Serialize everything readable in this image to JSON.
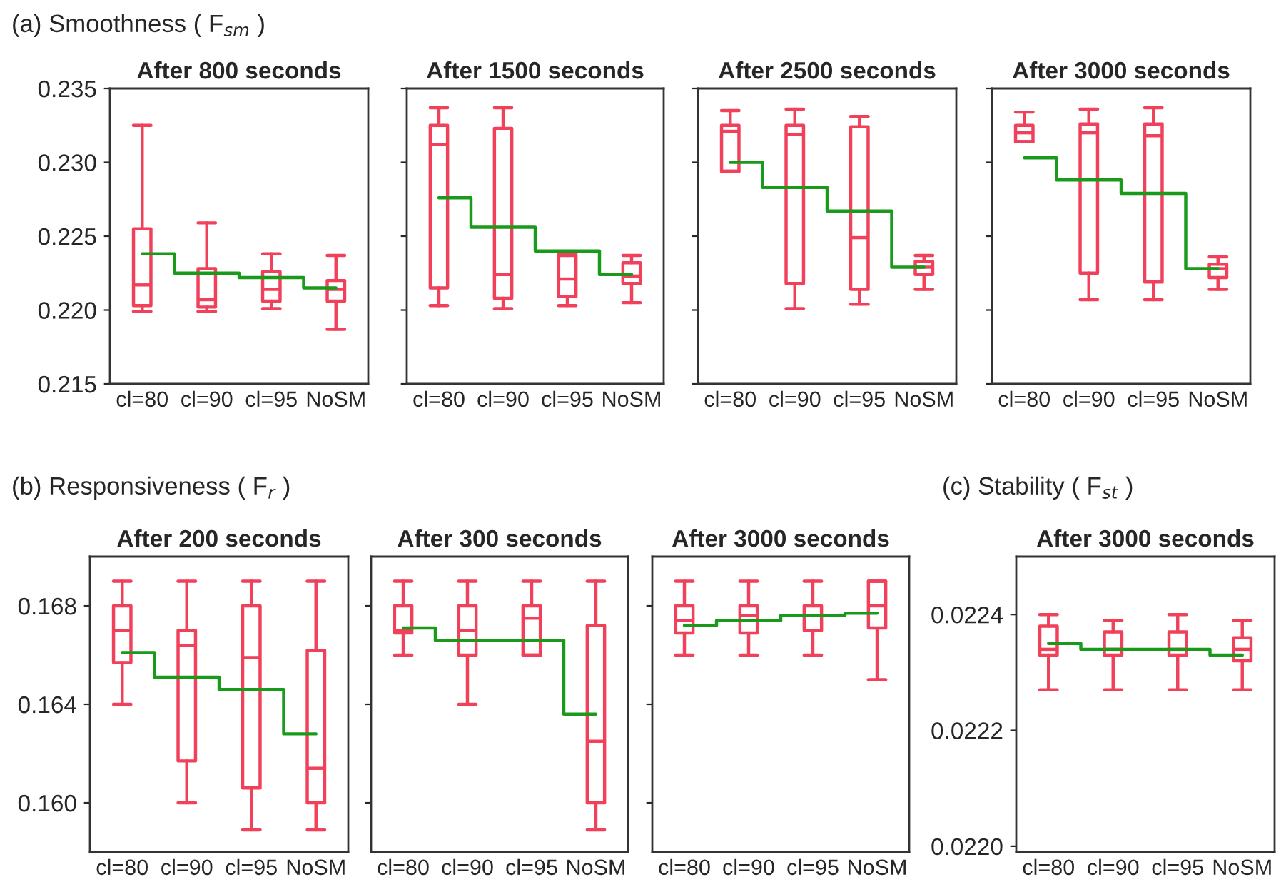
{
  "chart_data": [
    {
      "type": "box",
      "title": "After 800 seconds",
      "annotations": [
        "(a) Smoothness ( F$_{sm}$ )"
      ],
      "categories": [
        "cl=80",
        "cl=90",
        "cl=95",
        "NoSM"
      ],
      "ylim": [
        0.215,
        0.235
      ],
      "yticks": [
        {
          "value": 0.215,
          "label": "0.215"
        },
        {
          "value": 0.22,
          "label": "0.220"
        },
        {
          "value": 0.225,
          "label": "0.225"
        },
        {
          "value": 0.23,
          "label": "0.230"
        },
        {
          "value": 0.235,
          "label": "0.235"
        }
      ],
      "grid": false,
      "series": [
        {
          "color": "#f0405a",
          "boxes": [
            {
              "low": 0.2199,
              "q1": 0.2203,
              "median": 0.2217,
              "q3": 0.2255,
              "high": 0.2325
            },
            {
              "low": 0.2199,
              "q1": 0.2202,
              "median": 0.2207,
              "q3": 0.2228,
              "high": 0.2259
            },
            {
              "low": 0.2201,
              "q1": 0.2206,
              "median": 0.2214,
              "q3": 0.2226,
              "high": 0.2238
            },
            {
              "low": 0.2187,
              "q1": 0.2206,
              "median": 0.2214,
              "q3": 0.222,
              "high": 0.2237
            }
          ]
        },
        {
          "type": "step",
          "color": "#1a9a1a",
          "values": [
            0.2238,
            0.2225,
            0.2222,
            0.2215
          ]
        }
      ]
    },
    {
      "type": "box",
      "title": "After 1500 seconds",
      "categories": [
        "cl=80",
        "cl=90",
        "cl=95",
        "NoSM"
      ],
      "ylim": [
        0.215,
        0.235
      ],
      "yticks": [
        {
          "value": 0.215,
          "label": null
        },
        {
          "value": 0.22,
          "label": null
        },
        {
          "value": 0.225,
          "label": null
        },
        {
          "value": 0.23,
          "label": null
        },
        {
          "value": 0.235,
          "label": null
        }
      ],
      "tick_labels": "x",
      "grid": false,
      "series": [
        {
          "color": "#f0405a",
          "boxes": [
            {
              "low": 0.2203,
              "q1": 0.2215,
              "median": 0.2312,
              "q3": 0.2325,
              "high": 0.2337
            },
            {
              "low": 0.2201,
              "q1": 0.2208,
              "median": 0.2224,
              "q3": 0.2323,
              "high": 0.2337
            },
            {
              "low": 0.2203,
              "q1": 0.2209,
              "median": 0.2221,
              "q3": 0.2237,
              "high": 0.2238
            },
            {
              "low": 0.2205,
              "q1": 0.2218,
              "median": 0.2223,
              "q3": 0.2232,
              "high": 0.2237
            }
          ]
        },
        {
          "type": "step",
          "color": "#1a9a1a",
          "values": [
            0.2276,
            0.2256,
            0.224,
            0.2224
          ]
        }
      ]
    },
    {
      "type": "box",
      "title": "After 2500 seconds",
      "categories": [
        "cl=80",
        "cl=90",
        "cl=95",
        "NoSM"
      ],
      "ylim": [
        0.215,
        0.235
      ],
      "yticks": [
        {
          "value": 0.215,
          "label": null
        },
        {
          "value": 0.22,
          "label": null
        },
        {
          "value": 0.225,
          "label": null
        },
        {
          "value": 0.23,
          "label": null
        },
        {
          "value": 0.235,
          "label": null
        }
      ],
      "tick_labels": "x",
      "grid": false,
      "series": [
        {
          "color": "#f0405a",
          "boxes": [
            {
              "low": 0.2294,
              "q1": 0.2294,
              "median": 0.2321,
              "q3": 0.2325,
              "high": 0.2335
            },
            {
              "low": 0.2201,
              "q1": 0.2218,
              "median": 0.2319,
              "q3": 0.2325,
              "high": 0.2336
            },
            {
              "low": 0.2204,
              "q1": 0.2214,
              "median": 0.2249,
              "q3": 0.2324,
              "high": 0.2331
            },
            {
              "low": 0.2214,
              "q1": 0.2224,
              "median": 0.2229,
              "q3": 0.2233,
              "high": 0.2237
            }
          ]
        },
        {
          "type": "step",
          "color": "#1a9a1a",
          "values": [
            0.23,
            0.2283,
            0.2267,
            0.2229
          ]
        }
      ]
    },
    {
      "type": "box",
      "title": "After 3000 seconds",
      "categories": [
        "cl=80",
        "cl=90",
        "cl=95",
        "NoSM"
      ],
      "ylim": [
        0.215,
        0.235
      ],
      "yticks": [
        {
          "value": 0.215,
          "label": null
        },
        {
          "value": 0.22,
          "label": null
        },
        {
          "value": 0.225,
          "label": null
        },
        {
          "value": 0.23,
          "label": null
        },
        {
          "value": 0.235,
          "label": null
        }
      ],
      "tick_labels": "x",
      "grid": false,
      "series": [
        {
          "color": "#f0405a",
          "boxes": [
            {
              "low": 0.2314,
              "q1": 0.2314,
              "median": 0.232,
              "q3": 0.2325,
              "high": 0.2334
            },
            {
              "low": 0.2207,
              "q1": 0.2225,
              "median": 0.232,
              "q3": 0.2326,
              "high": 0.2336
            },
            {
              "low": 0.2207,
              "q1": 0.2219,
              "median": 0.2318,
              "q3": 0.2326,
              "high": 0.2337
            },
            {
              "low": 0.2214,
              "q1": 0.2222,
              "median": 0.2228,
              "q3": 0.2231,
              "high": 0.2236
            }
          ]
        },
        {
          "type": "step",
          "color": "#1a9a1a",
          "values": [
            0.2303,
            0.2288,
            0.2279,
            0.2228
          ]
        }
      ]
    },
    {
      "type": "box",
      "title": "After 200 seconds",
      "annotations": [
        "(b) Responsiveness ( F$_{r}$ )"
      ],
      "categories": [
        "cl=80",
        "cl=90",
        "cl=95",
        "NoSM"
      ],
      "ylim": [
        0.158,
        0.17
      ],
      "yticks": [
        {
          "value": 0.16,
          "label": "0.160"
        },
        0.164,
        0.168
      ],
      "grid": false,
      "series": [
        {
          "color": "#f0405a",
          "boxes": [
            {
              "low": 0.164,
              "q1": 0.1657,
              "median": 0.167,
              "q3": 0.168,
              "high": 0.169
            },
            {
              "low": 0.16,
              "q1": 0.1617,
              "median": 0.1664,
              "q3": 0.167,
              "high": 0.169
            },
            {
              "low": 0.1589,
              "q1": 0.1606,
              "median": 0.1659,
              "q3": 0.168,
              "high": 0.169
            },
            {
              "low": 0.1589,
              "q1": 0.16,
              "median": 0.1614,
              "q3": 0.1662,
              "high": 0.169
            }
          ]
        },
        {
          "type": "step",
          "color": "#1a9a1a",
          "values": [
            0.1661,
            0.1651,
            0.1646,
            0.1628
          ]
        }
      ]
    },
    {
      "type": "box",
      "title": "After 300 seconds",
      "categories": [
        "cl=80",
        "cl=90",
        "cl=95",
        "NoSM"
      ],
      "ylim": [
        0.158,
        0.17
      ],
      "yticks": [
        {
          "value": 0.16,
          "label": null
        },
        {
          "value": 0.164,
          "label": null
        },
        {
          "value": 0.168,
          "label": null
        }
      ],
      "tick_labels": "x",
      "grid": false,
      "series": [
        {
          "color": "#f0405a",
          "boxes": [
            {
              "low": 0.166,
              "q1": 0.1669,
              "median": 0.167,
              "q3": 0.168,
              "high": 0.169
            },
            {
              "low": 0.164,
              "q1": 0.166,
              "median": 0.167,
              "q3": 0.168,
              "high": 0.169
            },
            {
              "low": 0.166,
              "q1": 0.166,
              "median": 0.1675,
              "q3": 0.168,
              "high": 0.169
            },
            {
              "low": 0.1589,
              "q1": 0.16,
              "median": 0.1625,
              "q3": 0.1672,
              "high": 0.169
            }
          ]
        },
        {
          "type": "step",
          "color": "#1a9a1a",
          "values": [
            0.1671,
            0.1666,
            0.1666,
            0.1636
          ]
        }
      ]
    },
    {
      "type": "box",
      "title": "After 3000 seconds",
      "categories": [
        "cl=80",
        "cl=90",
        "cl=95",
        "NoSM"
      ],
      "ylim": [
        0.158,
        0.17
      ],
      "yticks": [
        {
          "value": 0.16,
          "label": null
        },
        {
          "value": 0.164,
          "label": null
        },
        {
          "value": 0.168,
          "label": null
        }
      ],
      "tick_labels": "x",
      "grid": false,
      "series": [
        {
          "color": "#f0405a",
          "boxes": [
            {
              "low": 0.166,
              "q1": 0.1669,
              "median": 0.1674,
              "q3": 0.168,
              "high": 0.169
            },
            {
              "low": 0.166,
              "q1": 0.1669,
              "median": 0.1676,
              "q3": 0.168,
              "high": 0.169
            },
            {
              "low": 0.166,
              "q1": 0.167,
              "median": 0.1676,
              "q3": 0.168,
              "high": 0.169
            },
            {
              "low": 0.165,
              "q1": 0.1671,
              "median": 0.168,
              "q3": 0.169,
              "high": 0.169
            }
          ]
        },
        {
          "type": "step",
          "color": "#1a9a1a",
          "values": [
            0.1672,
            0.1674,
            0.1676,
            0.1677
          ]
        }
      ]
    },
    {
      "type": "box",
      "title": "After 3000 seconds",
      "annotations": [
        "(c) Stability ( F$_{st}$ )"
      ],
      "categories": [
        "cl=80",
        "cl=90",
        "cl=95",
        "NoSM"
      ],
      "ylim": [
        0.02199,
        0.0225
      ],
      "yticks": [
        {
          "value": 0.022,
          "label": "0.0220"
        },
        0.0222,
        0.0224
      ],
      "grid": false,
      "series": [
        {
          "color": "#f0405a",
          "boxes": [
            {
              "low": 0.02227,
              "q1": 0.02233,
              "median": 0.02234,
              "q3": 0.02238,
              "high": 0.0224
            },
            {
              "low": 0.02227,
              "q1": 0.02233,
              "median": 0.02234,
              "q3": 0.02237,
              "high": 0.02239
            },
            {
              "low": 0.02227,
              "q1": 0.02233,
              "median": 0.02234,
              "q3": 0.02237,
              "high": 0.0224
            },
            {
              "low": 0.02227,
              "q1": 0.02232,
              "median": 0.02234,
              "q3": 0.02236,
              "high": 0.02239
            }
          ]
        },
        {
          "type": "step",
          "color": "#1a9a1a",
          "values": [
            0.02235,
            0.02234,
            0.02234,
            0.02233
          ]
        }
      ]
    }
  ]
}
